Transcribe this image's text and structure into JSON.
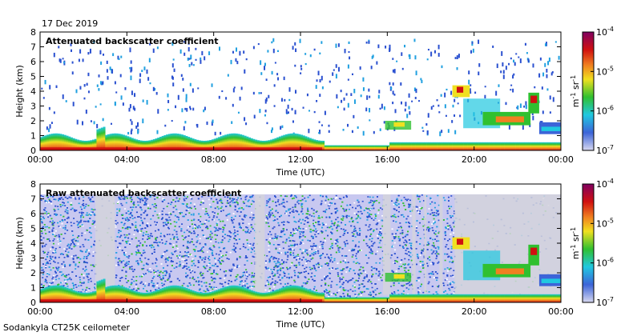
{
  "header": {
    "date": "17 Dec 2019"
  },
  "footer": {
    "instrument": "Sodankyla CT25K ceilometer"
  },
  "colorbar": {
    "units_base": "m",
    "units_exp1": "-1",
    "units_mid": " sr",
    "units_exp2": "-1",
    "tick_base": "10",
    "ticks": [
      {
        "exp": "-4"
      },
      {
        "exp": "-5"
      },
      {
        "exp": "-6"
      },
      {
        "exp": "-7"
      }
    ],
    "colors": [
      "#d8d8f0",
      "#3c64d8",
      "#20c8e0",
      "#30c030",
      "#f0e020",
      "#f08020",
      "#d01010",
      "#800060"
    ]
  },
  "chart_data": [
    {
      "type": "heatmap",
      "title": "Attenuated backscatter coefficient",
      "xlabel": "Time (UTC)",
      "ylabel": "Height (km)",
      "x_ticks": [
        "00:00",
        "04:00",
        "08:00",
        "12:00",
        "16:00",
        "20:00",
        "00:00"
      ],
      "y_ticks": [
        "0",
        "1",
        "2",
        "3",
        "4",
        "5",
        "6",
        "7",
        "8"
      ],
      "xlim_hours": [
        0,
        24
      ],
      "ylim_km": [
        0,
        8
      ],
      "color_scale": "log",
      "clim": [
        1e-07,
        0.0001
      ],
      "features": [
        {
          "name": "boundary layer",
          "hours": [
            0,
            13
          ],
          "top_km": 0.9
        },
        {
          "name": "low cloud",
          "hours": [
            16,
            17
          ],
          "base_km": 1.4,
          "top_km": 2.0
        },
        {
          "name": "cloud",
          "hours": [
            19,
            23
          ],
          "base_km": 1.0,
          "top_km": 4.5
        }
      ]
    },
    {
      "type": "heatmap",
      "title": "Raw attenuated backscatter coefficient",
      "xlabel": "Time (UTC)",
      "ylabel": "Height (km)",
      "x_ticks": [
        "00:00",
        "04:00",
        "08:00",
        "12:00",
        "16:00",
        "20:00",
        "00:00"
      ],
      "y_ticks": [
        "0",
        "1",
        "2",
        "3",
        "4",
        "5",
        "6",
        "7",
        "8"
      ],
      "xlim_hours": [
        0,
        24
      ],
      "ylim_km": [
        0,
        8
      ],
      "color_scale": "log",
      "clim": [
        1e-07,
        0.0001
      ]
    }
  ]
}
